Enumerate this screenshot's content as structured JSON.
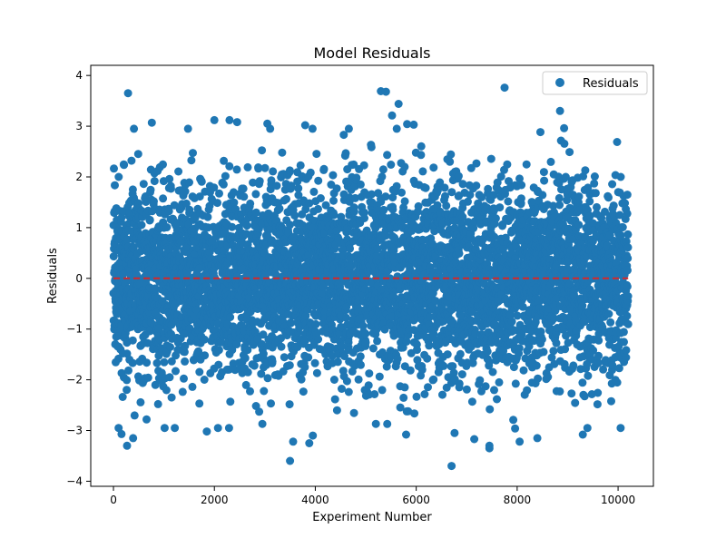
{
  "chart_data": {
    "type": "scatter",
    "title": "Model Residuals",
    "xlabel": "Experiment Number",
    "ylabel": "Residuals",
    "xlim": [
      -450,
      10700
    ],
    "ylim": [
      -4.1,
      4.2
    ],
    "xticks": [
      0,
      2000,
      4000,
      6000,
      8000,
      10000
    ],
    "yticks": [
      -4,
      -3,
      -2,
      -1,
      0,
      1,
      2,
      3,
      4
    ],
    "xtick_labels": [
      "0",
      "2000",
      "4000",
      "6000",
      "8000",
      "10000"
    ],
    "ytick_labels": [
      "−4",
      "−3",
      "−2",
      "−1",
      "0",
      "1",
      "2",
      "3",
      "4"
    ],
    "grid": false,
    "legend": {
      "placement": "top-right",
      "entries": [
        {
          "label": "Residuals",
          "color": "#1f77b4"
        }
      ]
    },
    "series": [
      {
        "name": "Residuals",
        "color": "#1f77b4",
        "x_range": [
          0,
          10200
        ],
        "distribution": "approximately normal around 0, std ≈ 1",
        "notable_points": [
          {
            "x": 290,
            "y": 3.65
          },
          {
            "x": 7750,
            "y": 3.76
          },
          {
            "x": 5300,
            "y": 3.69
          },
          {
            "x": 5400,
            "y": 3.68
          },
          {
            "x": 5650,
            "y": 3.44
          },
          {
            "x": 5520,
            "y": 3.21
          },
          {
            "x": 2000,
            "y": 3.12
          },
          {
            "x": 2300,
            "y": 3.12
          },
          {
            "x": 2450,
            "y": 3.08
          },
          {
            "x": 3050,
            "y": 3.05
          },
          {
            "x": 3800,
            "y": 3.02
          },
          {
            "x": 760,
            "y": 3.07
          },
          {
            "x": 5820,
            "y": 3.04
          },
          {
            "x": 5950,
            "y": 3.03
          },
          {
            "x": 8850,
            "y": 3.3
          },
          {
            "x": 8930,
            "y": 2.96
          },
          {
            "x": 3500,
            "y": -3.6
          },
          {
            "x": 6700,
            "y": -3.7
          },
          {
            "x": 7450,
            "y": -3.35
          },
          {
            "x": 7450,
            "y": -3.3
          },
          {
            "x": 270,
            "y": -3.3
          },
          {
            "x": 160,
            "y": -3.07
          },
          {
            "x": 390,
            "y": -3.15
          },
          {
            "x": 3560,
            "y": -3.22
          },
          {
            "x": 3950,
            "y": -3.1
          },
          {
            "x": 3880,
            "y": -3.25
          },
          {
            "x": 7150,
            "y": -3.17
          },
          {
            "x": 8050,
            "y": -3.22
          },
          {
            "x": 8400,
            "y": -3.15
          },
          {
            "x": 9300,
            "y": -3.08
          },
          {
            "x": 7960,
            "y": -2.96
          },
          {
            "x": 5800,
            "y": -3.08
          },
          {
            "x": 6760,
            "y": -3.05
          },
          {
            "x": 1850,
            "y": -3.02
          },
          {
            "x": 5200,
            "y": -2.87
          },
          {
            "x": 2950,
            "y": -2.87
          }
        ]
      },
      {
        "name": "",
        "type": "reference_line",
        "color": "#d62728",
        "style": "dashed",
        "x": [
          0,
          10200
        ],
        "y": [
          0,
          0
        ]
      }
    ]
  }
}
